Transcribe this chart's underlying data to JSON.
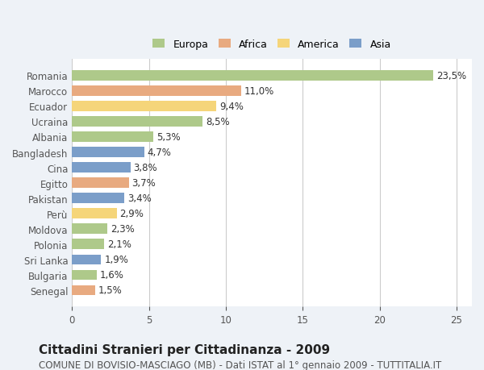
{
  "countries": [
    "Romania",
    "Marocco",
    "Ecuador",
    "Ucraina",
    "Albania",
    "Bangladesh",
    "Cina",
    "Egitto",
    "Pakistan",
    "Perù",
    "Moldova",
    "Polonia",
    "Sri Lanka",
    "Bulgaria",
    "Senegal"
  ],
  "values": [
    23.5,
    11.0,
    9.4,
    8.5,
    5.3,
    4.7,
    3.8,
    3.7,
    3.4,
    2.9,
    2.3,
    2.1,
    1.9,
    1.6,
    1.5
  ],
  "labels": [
    "23,5%",
    "11,0%",
    "9,4%",
    "8,5%",
    "5,3%",
    "4,7%",
    "3,8%",
    "3,7%",
    "3,4%",
    "2,9%",
    "2,3%",
    "2,1%",
    "1,9%",
    "1,6%",
    "1,5%"
  ],
  "continents": [
    "Europa",
    "Africa",
    "America",
    "Europa",
    "Europa",
    "Asia",
    "Asia",
    "Africa",
    "Asia",
    "America",
    "Europa",
    "Europa",
    "Asia",
    "Europa",
    "Africa"
  ],
  "continent_colors": {
    "Europa": "#aec98a",
    "Africa": "#e8aa80",
    "America": "#f5d57a",
    "Asia": "#7b9ec9"
  },
  "legend_order": [
    "Europa",
    "Africa",
    "America",
    "Asia"
  ],
  "xlim": [
    0,
    26
  ],
  "xticks": [
    0,
    5,
    10,
    15,
    20,
    25
  ],
  "title": "Cittadini Stranieri per Cittadinanza - 2009",
  "subtitle": "COMUNE DI BOVISIO-MASCIAGO (MB) - Dati ISTAT al 1° gennaio 2009 - TUTTITALIA.IT",
  "background_color": "#eef2f7",
  "bar_background": "#ffffff",
  "grid_color": "#cccccc",
  "label_fontsize": 8.5,
  "title_fontsize": 11,
  "subtitle_fontsize": 8.5
}
